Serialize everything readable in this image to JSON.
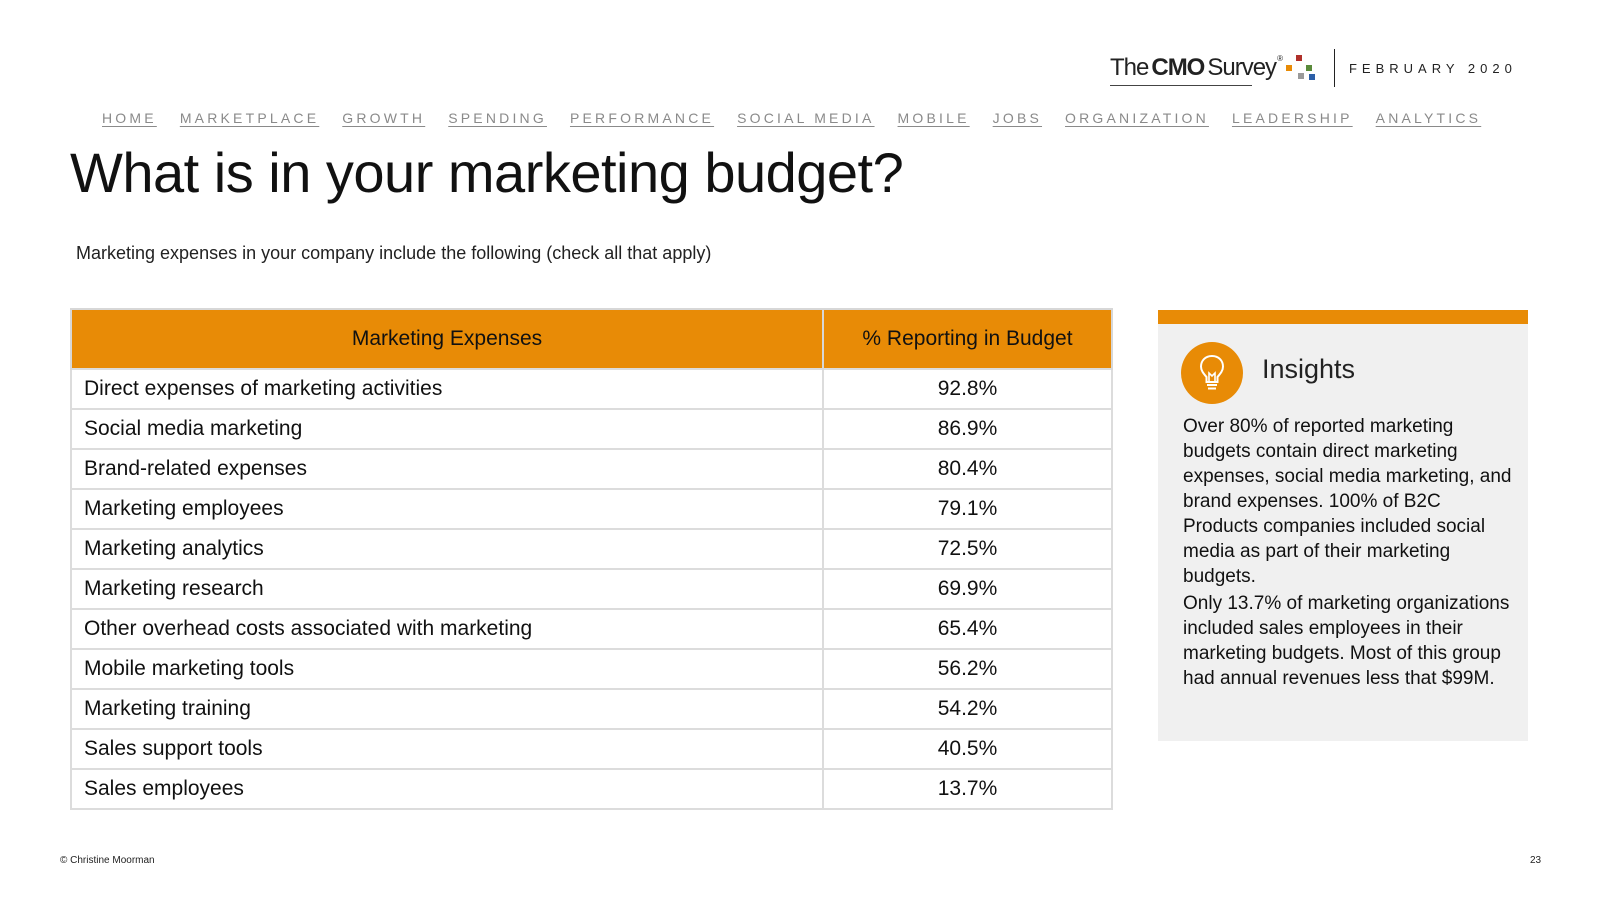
{
  "brand": {
    "logo_the": "The",
    "logo_cmo": "CMO",
    "logo_survey": "Survey",
    "logo_mark": "®",
    "date": "FEBRUARY 2020"
  },
  "nav": {
    "items": [
      "HOME",
      "MARKETPLACE",
      "GROWTH",
      "SPENDING",
      "PERFORMANCE",
      "SOCIAL MEDIA",
      "MOBILE",
      "JOBS",
      "ORGANIZATION",
      "LEADERSHIP",
      "ANALYTICS"
    ]
  },
  "page": {
    "title": "What is in your marketing budget?",
    "subtitle": "Marketing expenses in your company include the following (check all that apply)"
  },
  "table": {
    "headers": [
      "Marketing Expenses",
      "% Reporting in Budget"
    ],
    "rows": [
      {
        "expense": "Direct expenses of marketing activities",
        "pct": "92.8%"
      },
      {
        "expense": "Social media marketing",
        "pct": "86.9%"
      },
      {
        "expense": "Brand-related expenses",
        "pct": "80.4%"
      },
      {
        "expense": "Marketing employees",
        "pct": "79.1%"
      },
      {
        "expense": "Marketing analytics",
        "pct": "72.5%"
      },
      {
        "expense": "Marketing research",
        "pct": "69.9%"
      },
      {
        "expense": "Other overhead costs associated with marketing",
        "pct": "65.4%"
      },
      {
        "expense": "Mobile marketing tools",
        "pct": "56.2%"
      },
      {
        "expense": "Marketing training",
        "pct": "54.2%"
      },
      {
        "expense": "Sales support tools",
        "pct": "40.5%"
      },
      {
        "expense": "Sales employees",
        "pct": "13.7%"
      }
    ]
  },
  "insights": {
    "icon": "lightbulb-icon",
    "heading": "Insights",
    "paragraphs": [
      "Over 80% of reported marketing budgets contain direct marketing expenses, social media marketing, and brand expenses. 100% of B2C Products companies included social media as part of their marketing budgets.",
      "Only 13.7% of marketing organizations included sales employees in their marketing budgets. Most of this group had annual revenues less that $99M."
    ]
  },
  "footer": {
    "copyright": "© Christine Moorman",
    "page_number": "23"
  },
  "colors": {
    "accent": "#e88b06",
    "nav_text": "#8a8a8a",
    "panel_bg": "#f0f0f0",
    "dot_red": "#b0302a",
    "dot_orange": "#e88b06",
    "dot_blue": "#2c5fa8",
    "dot_green": "#5a8a3a",
    "dot_gray": "#9a9a9a"
  }
}
